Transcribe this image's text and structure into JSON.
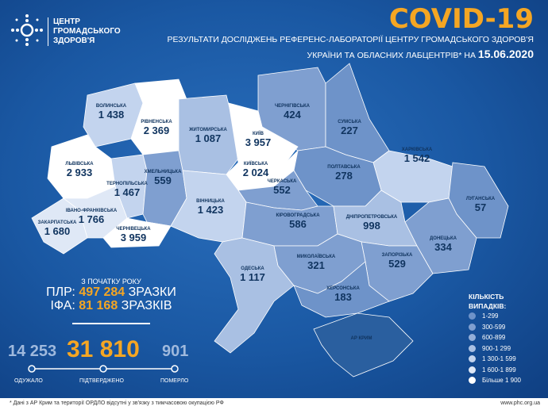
{
  "header": {
    "org_lines": [
      "ЦЕНТР",
      "ГРОМАДСЬКОГО",
      "ЗДОРОВ'Я"
    ],
    "title": "COVID-19",
    "subtitle1": "РЕЗУЛЬТАТИ ДОСЛІДЖЕНЬ РЕФЕРЕНС-ЛАБОРАТОРІЇ ЦЕНТРУ ГРОМАДСЬКОГО ЗДОРОВ'Я",
    "subtitle2": "УКРАЇНИ ТА ОБЛАСНИХ ЛАБЦЕНТРІВ* НА",
    "date": "15.06.2020"
  },
  "regions": [
    {
      "name": "ВОЛИНСЬКА",
      "value": "1 438",
      "n": 1438
    },
    {
      "name": "РІВНЕНСЬКА",
      "value": "2 369",
      "n": 2369
    },
    {
      "name": "ЖИТОМИРСЬКА",
      "value": "1 087",
      "n": 1087
    },
    {
      "name": "ЧЕРНІГІВСЬКА",
      "value": "424",
      "n": 424
    },
    {
      "name": "КИЇВ",
      "value": "3 957",
      "n": 3957
    },
    {
      "name": "КИЇВСЬКА",
      "value": "2 024",
      "n": 2024
    },
    {
      "name": "СУМСЬКА",
      "value": "227",
      "n": 227
    },
    {
      "name": "ХАРКІВСЬКА",
      "value": "1 542",
      "n": 1542
    },
    {
      "name": "ЛУГАНСЬКА",
      "value": "57",
      "n": 57
    },
    {
      "name": "ДОНЕЦЬКА",
      "value": "334",
      "n": 334
    },
    {
      "name": "ПОЛТАВСЬКА",
      "value": "278",
      "n": 278
    },
    {
      "name": "ЧЕРКАСЬКА",
      "value": "552",
      "n": 552
    },
    {
      "name": "ЛЬВІВСЬКА",
      "value": "2 933",
      "n": 2933
    },
    {
      "name": "ТЕРНОПІЛЬСЬКА",
      "value": "1 467",
      "n": 1467
    },
    {
      "name": "ХМЕЛЬНИЦЬКА",
      "value": "559",
      "n": 559
    },
    {
      "name": "ВІННИЦЬКА",
      "value": "1 423",
      "n": 1423
    },
    {
      "name": "ЗАКАРПАТСЬКА",
      "value": "1 680",
      "n": 1680
    },
    {
      "name": "ІВАНО-ФРАНКІВСЬКА",
      "value": "1 766",
      "n": 1766
    },
    {
      "name": "ЧЕРНІВЕЦЬКА",
      "value": "3 959",
      "n": 3959
    },
    {
      "name": "КІРОВОГРАДСЬКА",
      "value": "586",
      "n": 586
    },
    {
      "name": "ДНІПРОПЕТРОВСЬКА",
      "value": "998",
      "n": 998
    },
    {
      "name": "ЗАПОРІЗЬКА",
      "value": "529",
      "n": 529
    },
    {
      "name": "ОДЕСЬКА",
      "value": "1 117",
      "n": 1117
    },
    {
      "name": "МИКОЛАЇВСЬКА",
      "value": "321",
      "n": 321
    },
    {
      "name": "ХЕРСОНСЬКА",
      "value": "183",
      "n": 183
    },
    {
      "name": "АР КРИМ",
      "value": "",
      "n": null
    }
  ],
  "stats": {
    "since_label": "З ПОЧАТКУ РОКУ",
    "pcr_label": "ПЛР:",
    "pcr_value": "497 284",
    "pcr_unit": "ЗРАЗКИ",
    "ifa_label": "ІФА:",
    "ifa_value": "81 168",
    "ifa_unit": "ЗРАЗКІВ",
    "recovered": "14 253",
    "confirmed": "31 810",
    "deaths": "901",
    "recovered_label": "ОДУЖАЛО",
    "confirmed_label": "ПІДТВЕРДЖЕНО",
    "deaths_label": "ПОМЕРЛО"
  },
  "legend": {
    "title1": "КІЛЬКІСТЬ",
    "title2": "ВИПАДКІВ:",
    "items": [
      {
        "label": "1-299",
        "max": 299,
        "color": "#6e93c9"
      },
      {
        "label": "300-599",
        "max": 599,
        "color": "#7f9fd0"
      },
      {
        "label": "600-899",
        "max": 899,
        "color": "#93afd9"
      },
      {
        "label": "900-1 299",
        "max": 1299,
        "color": "#a9c0e3"
      },
      {
        "label": "1 300-1 599",
        "max": 1599,
        "color": "#c3d4ee"
      },
      {
        "label": "1 600-1 899",
        "max": 1899,
        "color": "#dfe8f6"
      },
      {
        "label": "Більше 1 900",
        "max": 999999,
        "color": "#ffffff"
      }
    ]
  },
  "crimea_color": "#2a5f9f",
  "footer": {
    "note": "* Дані з АР Крим та території ОРДЛО відсутні у зв'язку з тимчасовою окупацією РФ",
    "url": "www.phc.org.ua"
  }
}
